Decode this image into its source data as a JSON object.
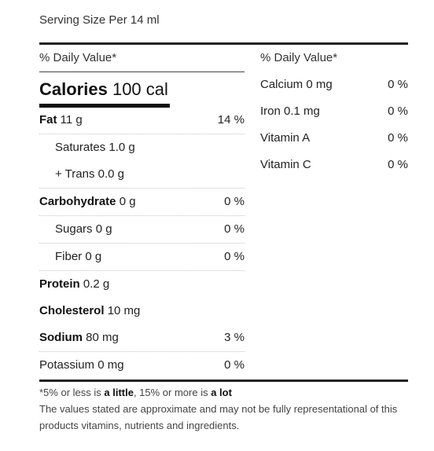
{
  "serving": "Serving Size Per 14 ml",
  "daily_value_label": "% Daily Value*",
  "calories": {
    "label": "Calories",
    "value": "100 cal"
  },
  "nutrients": [
    {
      "name": "Fat",
      "amount": "11 g",
      "percent": "14 %"
    },
    {
      "name": "Saturates",
      "amount": "1.0 g",
      "percent": ""
    },
    {
      "name": "+ Trans",
      "amount": "0.0 g",
      "percent": ""
    },
    {
      "name": "Carbohydrate",
      "amount": "0 g",
      "percent": "0 %"
    },
    {
      "name": "Sugars",
      "amount": "0 g",
      "percent": "0 %"
    },
    {
      "name": "Fiber",
      "amount": "0 g",
      "percent": "0 %"
    },
    {
      "name": "Protein",
      "amount": "0.2 g",
      "percent": ""
    },
    {
      "name": "Cholesterol",
      "amount": "10 mg",
      "percent": ""
    },
    {
      "name": "Sodium",
      "amount": "80 mg",
      "percent": "3 %"
    },
    {
      "name": "Potassium",
      "amount": "0 mg",
      "percent": "0 %"
    }
  ],
  "vitamins": [
    {
      "name": "Calcium",
      "amount": "0 mg",
      "percent": "0 %"
    },
    {
      "name": "Iron",
      "amount": "0.1 mg",
      "percent": "0 %"
    },
    {
      "name": "Vitamin A",
      "amount": "",
      "percent": "0 %"
    },
    {
      "name": "Vitamin C",
      "amount": "",
      "percent": "0 %"
    }
  ],
  "footnote": {
    "prefix": "*5% or less is ",
    "little": "a little",
    "middle": ", 15% or more is ",
    "lot": "a lot",
    "disclaimer": "The values stated are approximate and may not be fully representational of this products vitamins, nutrients and ingredients."
  }
}
